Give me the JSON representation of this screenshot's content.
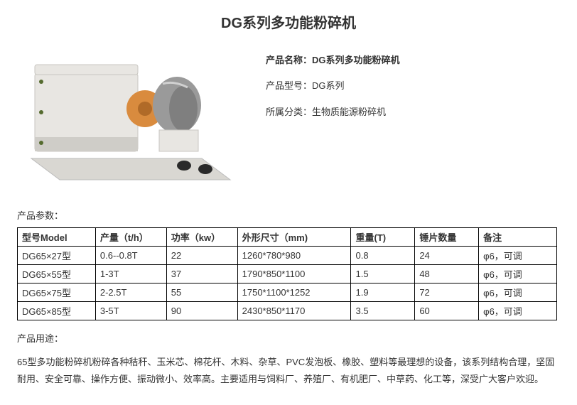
{
  "title": "DG系列多功能粉碎机",
  "info": {
    "name_label": "产品名称：",
    "name_value": "DG系列多功能粉碎机",
    "model_label": "产品型号：",
    "model_value": "DG系列",
    "category_label": "所属分类：",
    "category_value": "生物质能源粉碎机"
  },
  "params_heading": "产品参数：",
  "table": {
    "columns": [
      "型号Model",
      "产量（t/h）",
      "功率（kw）",
      "外形尺寸（mm)",
      "重量(T)",
      "锤片数量",
      "备注"
    ],
    "rows": [
      [
        "DG65×27型",
        "0.6--0.8T",
        "22",
        "1260*780*980",
        "0.8",
        "24",
        "φ6，可调"
      ],
      [
        "DG65×55型",
        "1-3T",
        "37",
        "1790*850*1100",
        "1.5",
        "48",
        "φ6，可调"
      ],
      [
        "DG65×75型",
        "2-2.5T",
        "55",
        "1750*1100*1252",
        "1.9",
        "72",
        "φ6，可调"
      ],
      [
        "DG65×85型",
        "3-5T",
        "90",
        "2430*850*1170",
        "3.5",
        "60",
        "φ6，可调"
      ]
    ],
    "col_widths": [
      "110px",
      "100px",
      "100px",
      "160px",
      "90px",
      "90px",
      "110px"
    ]
  },
  "usage_heading": "产品用途：",
  "usage_body": "65型多功能粉碎机粉碎各种秸秆、玉米芯、棉花杆、木料、杂草、PVC发泡板、橡胶、塑料等最理想的设备，该系列结构合理，坚固耐用、安全可靠、操作方便、振动微小、效率高。主要适用与饲料厂、养殖厂、有机肥厂、中草药、化工等，深受广大客户欢迎。",
  "image": {
    "machine_body_color": "#e8e6e2",
    "machine_shadow_color": "#cfcdc8",
    "motor_wrap_color": "#9a9a9a",
    "motor_wrap_dark": "#6e6e6e",
    "coupling_color": "#d98b3e",
    "bolt_color": "#556b2f",
    "base_color": "#d9d7d2"
  }
}
